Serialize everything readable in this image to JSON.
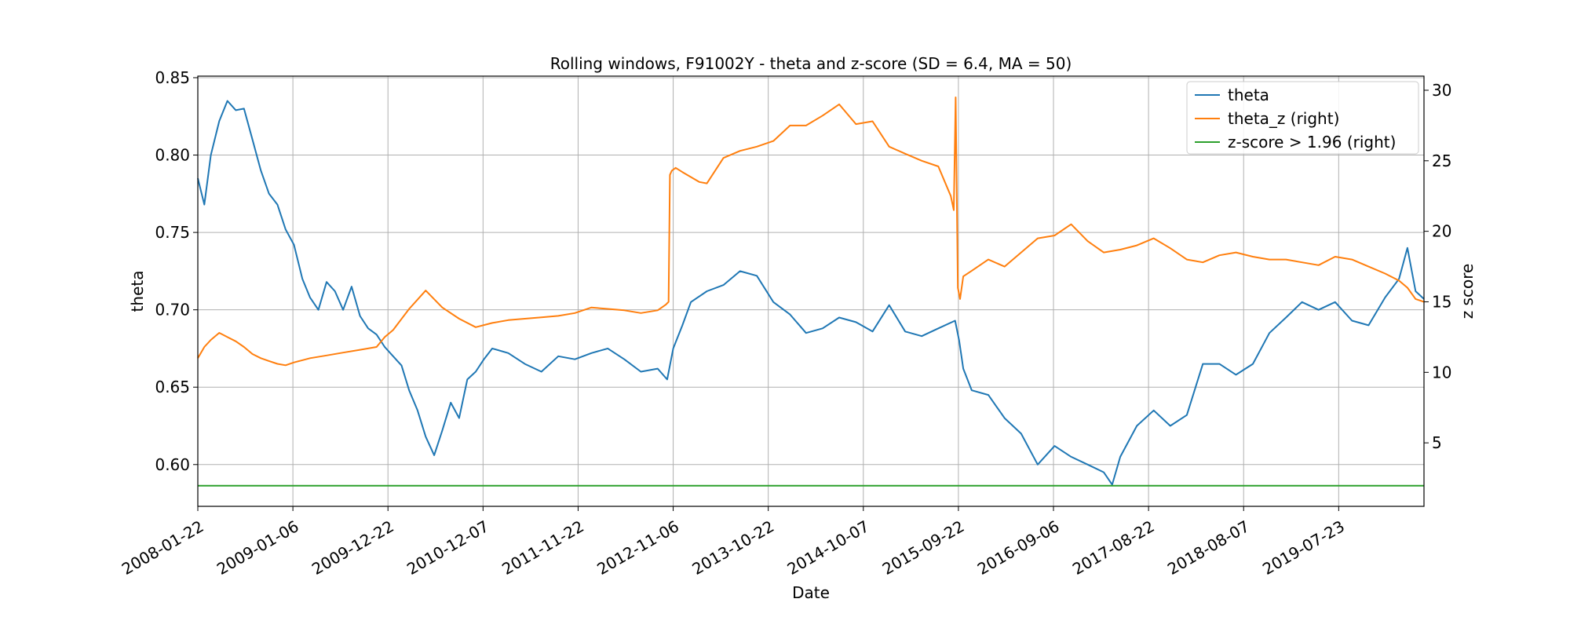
{
  "chart_data": {
    "type": "line",
    "title": "Rolling windows, F91002Y - theta and z-score (SD = 6.4, MA = 50)",
    "xlabel": "Date",
    "ylabel_left": "theta",
    "ylabel_right": "z score",
    "x_tick_labels": [
      "2008-01-22",
      "2009-01-06",
      "2009-12-22",
      "2010-12-07",
      "2011-11-22",
      "2012-11-06",
      "2013-10-22",
      "2014-10-07",
      "2015-09-22",
      "2016-09-06",
      "2017-08-22",
      "2018-08-07",
      "2019-07-23"
    ],
    "xlim": [
      "2008-01-22",
      "2020-06-01"
    ],
    "ylim_left": [
      0.573,
      0.851
    ],
    "ylim_right": [
      0.5,
      31
    ],
    "yticks_left": [
      0.6,
      0.65,
      0.7,
      0.75,
      0.8,
      0.85
    ],
    "yticks_left_labels": [
      "0.60",
      "0.65",
      "0.70",
      "0.75",
      "0.80",
      "0.85"
    ],
    "yticks_right": [
      5,
      10,
      15,
      20,
      25,
      30
    ],
    "yticks_right_labels": [
      "5",
      "10",
      "15",
      "20",
      "25",
      "30"
    ],
    "grid": true,
    "legend_position": "top-right",
    "series": [
      {
        "name": "theta",
        "axis": "left",
        "color": "#1f77b4",
        "x": [
          "2008-01-22",
          "2008-02-15",
          "2008-03-10",
          "2008-04-10",
          "2008-05-10",
          "2008-06-10",
          "2008-07-10",
          "2008-08-10",
          "2008-09-10",
          "2008-10-10",
          "2008-11-10",
          "2008-12-10",
          "2009-01-10",
          "2009-02-10",
          "2009-03-10",
          "2009-04-10",
          "2009-05-10",
          "2009-06-10",
          "2009-07-10",
          "2009-08-10",
          "2009-09-10",
          "2009-10-10",
          "2009-11-10",
          "2009-12-10",
          "2010-01-10",
          "2010-02-10",
          "2010-03-10",
          "2010-04-10",
          "2010-05-10",
          "2010-06-10",
          "2010-07-10",
          "2010-08-10",
          "2010-09-10",
          "2010-10-10",
          "2010-11-10",
          "2010-12-10",
          "2011-01-10",
          "2011-03-10",
          "2011-05-10",
          "2011-07-10",
          "2011-09-10",
          "2011-11-10",
          "2012-01-10",
          "2012-03-10",
          "2012-05-10",
          "2012-07-10",
          "2012-09-10",
          "2012-10-15",
          "2012-11-06",
          "2012-12-10",
          "2013-01-10",
          "2013-03-10",
          "2013-05-10",
          "2013-07-10",
          "2013-09-10",
          "2013-11-10",
          "2014-01-10",
          "2014-03-10",
          "2014-05-10",
          "2014-07-10",
          "2014-09-10",
          "2014-11-10",
          "2015-01-10",
          "2015-03-10",
          "2015-05-10",
          "2015-07-10",
          "2015-09-10",
          "2015-09-25",
          "2015-10-10",
          "2015-11-10",
          "2016-01-10",
          "2016-03-10",
          "2016-05-10",
          "2016-07-10",
          "2016-09-10",
          "2016-11-10",
          "2017-01-10",
          "2017-03-10",
          "2017-04-10",
          "2017-05-10",
          "2017-07-10",
          "2017-09-10",
          "2017-11-10",
          "2018-01-10",
          "2018-03-10",
          "2018-05-10",
          "2018-07-10",
          "2018-09-10",
          "2018-11-10",
          "2019-01-10",
          "2019-03-10",
          "2019-05-10",
          "2019-07-10",
          "2019-09-10",
          "2019-11-10",
          "2020-01-10",
          "2020-03-01",
          "2020-04-01",
          "2020-05-01",
          "2020-06-01"
        ],
        "values": [
          0.785,
          0.768,
          0.8,
          0.822,
          0.835,
          0.829,
          0.83,
          0.81,
          0.79,
          0.775,
          0.768,
          0.752,
          0.742,
          0.72,
          0.708,
          0.7,
          0.718,
          0.712,
          0.7,
          0.715,
          0.696,
          0.688,
          0.684,
          0.676,
          0.67,
          0.664,
          0.648,
          0.635,
          0.618,
          0.606,
          0.622,
          0.64,
          0.63,
          0.655,
          0.66,
          0.668,
          0.675,
          0.672,
          0.665,
          0.66,
          0.67,
          0.668,
          0.672,
          0.675,
          0.668,
          0.66,
          0.662,
          0.655,
          0.675,
          0.69,
          0.705,
          0.712,
          0.716,
          0.725,
          0.722,
          0.705,
          0.697,
          0.685,
          0.688,
          0.695,
          0.692,
          0.686,
          0.703,
          0.686,
          0.683,
          0.688,
          0.693,
          0.68,
          0.662,
          0.648,
          0.645,
          0.63,
          0.62,
          0.6,
          0.612,
          0.605,
          0.6,
          0.595,
          0.587,
          0.605,
          0.625,
          0.635,
          0.625,
          0.632,
          0.665,
          0.665,
          0.658,
          0.665,
          0.685,
          0.695,
          0.705,
          0.7,
          0.705,
          0.693,
          0.69,
          0.708,
          0.72,
          0.74,
          0.712,
          0.707
        ]
      },
      {
        "name": "theta_z (right)",
        "axis": "right",
        "color": "#ff7f0e",
        "x": [
          "2008-01-22",
          "2008-02-15",
          "2008-03-10",
          "2008-04-10",
          "2008-05-10",
          "2008-06-10",
          "2008-07-10",
          "2008-08-10",
          "2008-09-10",
          "2008-10-10",
          "2008-11-10",
          "2008-12-10",
          "2009-01-10",
          "2009-03-10",
          "2009-05-10",
          "2009-07-10",
          "2009-09-10",
          "2009-11-10",
          "2009-12-10",
          "2010-01-10",
          "2010-03-10",
          "2010-05-10",
          "2010-07-10",
          "2010-09-10",
          "2010-11-10",
          "2011-01-10",
          "2011-03-10",
          "2011-05-10",
          "2011-07-10",
          "2011-09-10",
          "2011-11-10",
          "2012-01-10",
          "2012-03-10",
          "2012-05-10",
          "2012-07-10",
          "2012-09-10",
          "2012-10-10",
          "2012-10-20",
          "2012-10-25",
          "2012-11-01",
          "2012-11-15",
          "2012-12-10",
          "2013-02-10",
          "2013-03-10",
          "2013-05-10",
          "2013-07-10",
          "2013-09-10",
          "2013-11-10",
          "2014-01-10",
          "2014-03-10",
          "2014-05-10",
          "2014-07-10",
          "2014-09-10",
          "2014-11-10",
          "2015-01-10",
          "2015-03-10",
          "2015-05-10",
          "2015-07-10",
          "2015-08-25",
          "2015-09-05",
          "2015-09-12",
          "2015-09-20",
          "2015-09-28",
          "2015-10-10",
          "2015-11-10",
          "2016-01-10",
          "2016-03-10",
          "2016-05-10",
          "2016-07-10",
          "2016-09-10",
          "2016-11-10",
          "2017-01-10",
          "2017-03-10",
          "2017-05-10",
          "2017-07-10",
          "2017-09-10",
          "2017-11-10",
          "2018-01-10",
          "2018-03-10",
          "2018-05-10",
          "2018-07-10",
          "2018-09-10",
          "2018-11-10",
          "2019-01-10",
          "2019-03-10",
          "2019-05-10",
          "2019-07-10",
          "2019-09-10",
          "2019-11-10",
          "2020-01-10",
          "2020-03-01",
          "2020-04-01",
          "2020-05-01",
          "2020-06-01"
        ],
        "values": [
          11.0,
          11.8,
          12.3,
          12.8,
          12.5,
          12.2,
          11.8,
          11.3,
          11.0,
          10.8,
          10.6,
          10.5,
          10.7,
          11.0,
          11.2,
          11.4,
          11.6,
          11.8,
          12.5,
          13.0,
          14.5,
          15.8,
          14.6,
          13.8,
          13.2,
          13.5,
          13.7,
          13.8,
          13.9,
          14.0,
          14.2,
          14.6,
          14.5,
          14.4,
          14.2,
          14.4,
          14.8,
          15.0,
          24.0,
          24.3,
          24.5,
          24.2,
          23.5,
          23.4,
          25.2,
          25.7,
          26.0,
          26.4,
          27.5,
          27.5,
          28.2,
          29.0,
          27.6,
          27.8,
          26.0,
          25.5,
          25.0,
          24.6,
          22.5,
          21.5,
          29.5,
          16.0,
          15.2,
          16.8,
          17.2,
          18.0,
          17.5,
          18.5,
          19.5,
          19.7,
          20.5,
          19.3,
          18.5,
          18.7,
          19.0,
          19.5,
          18.8,
          18.0,
          17.8,
          18.3,
          18.5,
          18.2,
          18.0,
          18.0,
          17.8,
          17.6,
          18.2,
          18.0,
          17.5,
          17.0,
          16.5,
          16.0,
          15.2,
          15.0
        ]
      },
      {
        "name": "z-score > 1.96 (right)",
        "axis": "right",
        "color": "#2ca02c",
        "x": [
          "2008-01-22",
          "2020-06-01"
        ],
        "values": [
          1.96,
          1.96
        ]
      }
    ]
  }
}
